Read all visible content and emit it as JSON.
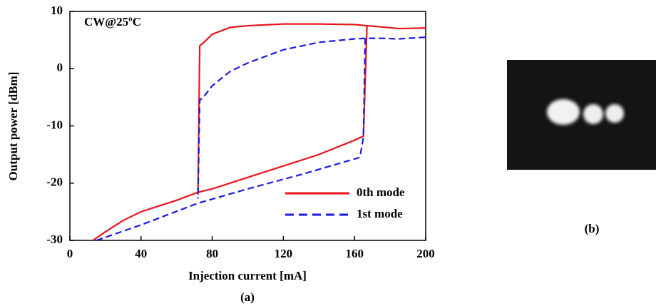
{
  "chart_data": {
    "type": "line",
    "xlabel": "Injection current [mA]",
    "ylabel": "Output power [dBm]",
    "annotation": "CW@25ºC",
    "panel_labels": [
      "(a)",
      "(b)"
    ],
    "xlim": [
      0,
      200
    ],
    "xticks": [
      0,
      40,
      80,
      120,
      160,
      200
    ],
    "ylim": [
      -30,
      10
    ],
    "yticks": [
      -30,
      -20,
      -10,
      0,
      10
    ],
    "grid": false,
    "legend": "lower right",
    "series": [
      {
        "name": "0th mode",
        "color": "#e8141b",
        "dash": false,
        "x": [
          13,
          20,
          30,
          40,
          50,
          60,
          72,
          80,
          100,
          120,
          140,
          160,
          165,
          167,
          175,
          185,
          200,
          null,
          167,
          160,
          140,
          120,
          100,
          90,
          80,
          75,
          73,
          72
        ],
        "values": [
          -30,
          -28.5,
          -26.5,
          -25,
          -24,
          -23,
          -21.6,
          -21,
          -19,
          -17,
          -15,
          -12.5,
          -11.8,
          7.5,
          7.3,
          7,
          7.1,
          null,
          7.5,
          7.7,
          7.8,
          7.8,
          7.5,
          7.2,
          6,
          4.5,
          4,
          -22
        ]
      },
      {
        "name": "1st mode",
        "color": "#1a1ae6",
        "dash": true,
        "x": [
          15,
          40,
          72,
          100,
          130,
          163,
          165,
          166,
          175,
          185,
          200,
          null,
          166,
          160,
          140,
          120,
          100,
          90,
          80,
          75,
          73,
          72
        ],
        "values": [
          -30,
          -27.3,
          -23.5,
          -21,
          -18.5,
          -15.5,
          -12,
          5.3,
          5.3,
          5.2,
          5.5,
          null,
          5.3,
          5.2,
          4.6,
          3.3,
          1,
          -0.5,
          -3,
          -5,
          -5.5,
          -22.7
        ]
      }
    ]
  }
}
